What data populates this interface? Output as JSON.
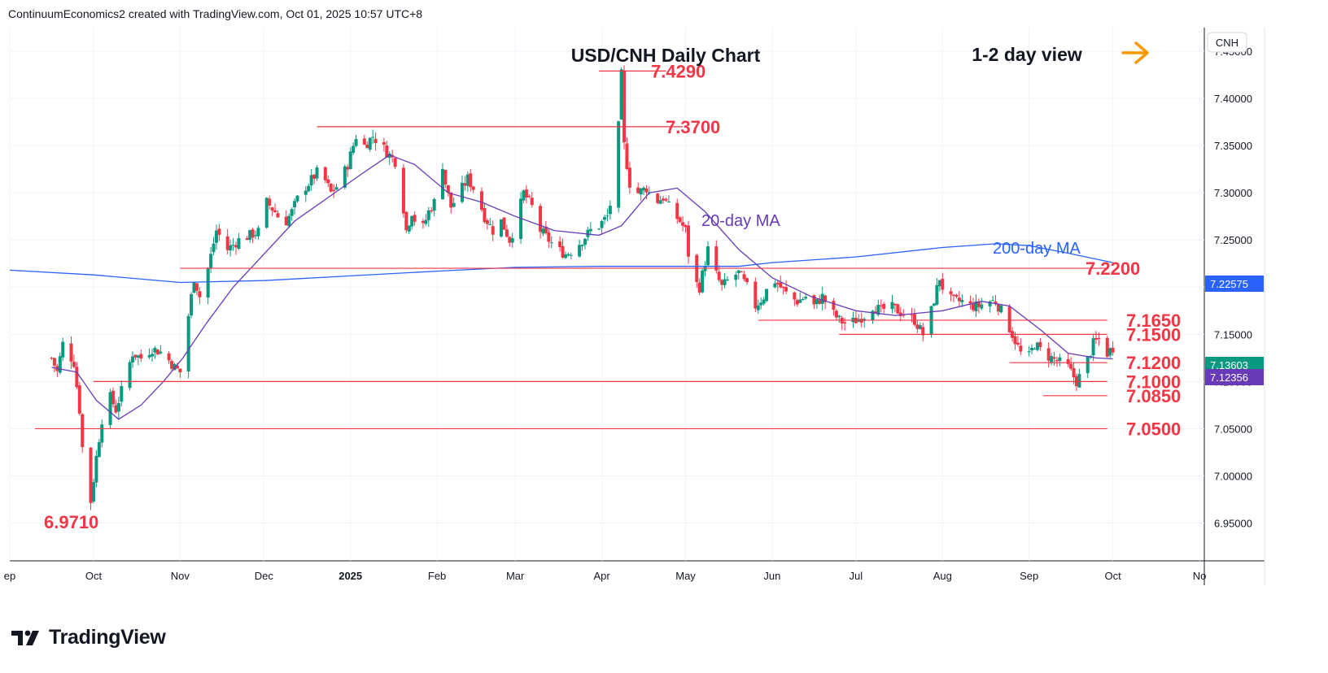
{
  "header": "ContinuumEconomics2 created with TradingView.com, Oct 01, 2025 10:57 UTC+8",
  "brand": "TradingView",
  "symbol_tag": "CNH",
  "colors": {
    "up": "#089981",
    "down": "#f23645",
    "level": "#f23645",
    "ma20": "#673ab7",
    "ma200": "#2962ff",
    "arrow": "#ff9800"
  },
  "chart_data": {
    "type": "candlestick",
    "title": "USD/CNH Daily Chart",
    "view_label": "1-2 day view",
    "view_icon": "arrow-right-icon",
    "ylim": [
      6.91,
      7.475
    ],
    "y_ticks": [
      "7.45000",
      "7.40000",
      "7.35000",
      "7.30000",
      "7.25000",
      "7.20000",
      "7.15000",
      "7.10000",
      "7.05000",
      "7.00000",
      "6.95000"
    ],
    "x_labels": [
      "ep",
      "Oct",
      "Nov",
      "Dec",
      "2025",
      "Feb",
      "Mar",
      "Apr",
      "May",
      "Jun",
      "Jul",
      "Aug",
      "Sep",
      "Oct",
      "No"
    ],
    "price_tags": [
      {
        "label": "7.22575",
        "value": 7.22575,
        "color": "#2962ff"
      },
      {
        "label": "7.13603",
        "value": 7.13603,
        "color": "#089981"
      },
      {
        "label": "7.12356",
        "value": 7.12356,
        "color": "#673ab7"
      }
    ],
    "levels": [
      {
        "label": "7.4290",
        "value": 7.429
      },
      {
        "label": "7.3700",
        "value": 7.37
      },
      {
        "label": "7.2200",
        "value": 7.22
      },
      {
        "label": "7.1650",
        "value": 7.165
      },
      {
        "label": "7.1500",
        "value": 7.15
      },
      {
        "label": "7.1200",
        "value": 7.12
      },
      {
        "label": "7.1000",
        "value": 7.1
      },
      {
        "label": "7.0850",
        "value": 7.085
      },
      {
        "label": "7.0500",
        "value": 7.05
      }
    ],
    "low_annotation": {
      "label": "6.9710",
      "value": 6.971
    },
    "ma_labels": [
      {
        "label": "20-day MA",
        "color": "#673ab7"
      },
      {
        "label": "200-day MA",
        "color": "#2962ff"
      }
    ],
    "close_path": [
      [
        "2024-09-16",
        7.125
      ],
      [
        "2024-09-18",
        7.11
      ],
      [
        "2024-09-20",
        7.14
      ],
      [
        "2024-09-24",
        7.12
      ],
      [
        "2024-09-26",
        7.07
      ],
      [
        "2024-09-27",
        7.03
      ],
      [
        "2024-09-29",
        6.99
      ],
      [
        "2024-09-30",
        6.973
      ],
      [
        "2024-10-02",
        7.02
      ],
      [
        "2024-10-04",
        7.06
      ],
      [
        "2024-10-06",
        7.09
      ],
      [
        "2024-10-09",
        7.07
      ],
      [
        "2024-10-12",
        7.1
      ],
      [
        "2024-10-15",
        7.13
      ],
      [
        "2024-10-18",
        7.125
      ],
      [
        "2024-10-22",
        7.135
      ],
      [
        "2024-10-26",
        7.13
      ],
      [
        "2024-10-30",
        7.115
      ],
      [
        "2024-11-01",
        7.11
      ],
      [
        "2024-11-04",
        7.17
      ],
      [
        "2024-11-06",
        7.21
      ],
      [
        "2024-11-08",
        7.19
      ],
      [
        "2024-11-11",
        7.22
      ],
      [
        "2024-11-14",
        7.26
      ],
      [
        "2024-11-18",
        7.24
      ],
      [
        "2024-11-22",
        7.25
      ],
      [
        "2024-11-26",
        7.255
      ],
      [
        "2024-11-30",
        7.26
      ],
      [
        "2024-12-02",
        7.29
      ],
      [
        "2024-12-05",
        7.28
      ],
      [
        "2024-12-08",
        7.265
      ],
      [
        "2024-12-11",
        7.28
      ],
      [
        "2024-12-14",
        7.3
      ],
      [
        "2024-12-17",
        7.31
      ],
      [
        "2024-12-21",
        7.325
      ],
      [
        "2024-12-25",
        7.3
      ],
      [
        "2024-12-28",
        7.31
      ],
      [
        "2024-12-31",
        7.33
      ],
      [
        "2025-01-03",
        7.36
      ],
      [
        "2025-01-06",
        7.35
      ],
      [
        "2025-01-09",
        7.36
      ],
      [
        "2025-01-12",
        7.35
      ],
      [
        "2025-01-15",
        7.34
      ],
      [
        "2025-01-18",
        7.33
      ],
      [
        "2025-01-21",
        7.26
      ],
      [
        "2025-01-23",
        7.28
      ],
      [
        "2025-01-26",
        7.255
      ],
      [
        "2025-01-29",
        7.28
      ],
      [
        "2025-01-31",
        7.29
      ],
      [
        "2025-02-02",
        7.35
      ],
      [
        "2025-02-04",
        7.31
      ],
      [
        "2025-02-06",
        7.285
      ],
      [
        "2025-02-09",
        7.3
      ],
      [
        "2025-02-12",
        7.315
      ],
      [
        "2025-02-15",
        7.3
      ],
      [
        "2025-02-18",
        7.275
      ],
      [
        "2025-02-21",
        7.26
      ],
      [
        "2025-02-24",
        7.27
      ],
      [
        "2025-02-27",
        7.25
      ],
      [
        "2025-03-01",
        7.265
      ],
      [
        "2025-03-04",
        7.3
      ],
      [
        "2025-03-07",
        7.285
      ],
      [
        "2025-03-10",
        7.26
      ],
      [
        "2025-03-13",
        7.25
      ],
      [
        "2025-03-16",
        7.24
      ],
      [
        "2025-03-19",
        7.235
      ],
      [
        "2025-03-22",
        7.24
      ],
      [
        "2025-03-25",
        7.25
      ],
      [
        "2025-03-28",
        7.26
      ],
      [
        "2025-03-31",
        7.265
      ],
      [
        "2025-04-03",
        7.275
      ],
      [
        "2025-04-05",
        7.3
      ],
      [
        "2025-04-07",
        7.37
      ],
      [
        "2025-04-08",
        7.425
      ],
      [
        "2025-04-09",
        7.35
      ],
      [
        "2025-04-11",
        7.31
      ],
      [
        "2025-04-14",
        7.3
      ],
      [
        "2025-04-17",
        7.305
      ],
      [
        "2025-04-20",
        7.29
      ],
      [
        "2025-04-23",
        7.295
      ],
      [
        "2025-04-26",
        7.28
      ],
      [
        "2025-04-29",
        7.27
      ],
      [
        "2025-05-01",
        7.26
      ],
      [
        "2025-05-03",
        7.21
      ],
      [
        "2025-05-06",
        7.2
      ],
      [
        "2025-05-09",
        7.24
      ],
      [
        "2025-05-11",
        7.22
      ],
      [
        "2025-05-14",
        7.2
      ],
      [
        "2025-05-17",
        7.21
      ],
      [
        "2025-05-20",
        7.215
      ],
      [
        "2025-05-23",
        7.2
      ],
      [
        "2025-05-26",
        7.18
      ],
      [
        "2025-05-29",
        7.19
      ],
      [
        "2025-06-01",
        7.21
      ],
      [
        "2025-06-04",
        7.2
      ],
      [
        "2025-06-07",
        7.19
      ],
      [
        "2025-06-10",
        7.185
      ],
      [
        "2025-06-13",
        7.19
      ],
      [
        "2025-06-16",
        7.18
      ],
      [
        "2025-06-19",
        7.19
      ],
      [
        "2025-06-22",
        7.175
      ],
      [
        "2025-06-25",
        7.165
      ],
      [
        "2025-06-28",
        7.16
      ],
      [
        "2025-07-01",
        7.165
      ],
      [
        "2025-07-04",
        7.17
      ],
      [
        "2025-07-07",
        7.18
      ],
      [
        "2025-07-10",
        7.175
      ],
      [
        "2025-07-13",
        7.18
      ],
      [
        "2025-07-16",
        7.175
      ],
      [
        "2025-07-19",
        7.17
      ],
      [
        "2025-07-22",
        7.165
      ],
      [
        "2025-07-25",
        7.15
      ],
      [
        "2025-07-28",
        7.175
      ],
      [
        "2025-07-31",
        7.21
      ],
      [
        "2025-08-02",
        7.19
      ],
      [
        "2025-08-05",
        7.185
      ],
      [
        "2025-08-08",
        7.185
      ],
      [
        "2025-08-11",
        7.18
      ],
      [
        "2025-08-14",
        7.18
      ],
      [
        "2025-08-17",
        7.185
      ],
      [
        "2025-08-20",
        7.185
      ],
      [
        "2025-08-23",
        7.17
      ],
      [
        "2025-08-26",
        7.15
      ],
      [
        "2025-08-29",
        7.13
      ],
      [
        "2025-08-31",
        7.12
      ],
      [
        "2025-09-03",
        7.14
      ],
      [
        "2025-09-06",
        7.13
      ],
      [
        "2025-09-09",
        7.125
      ],
      [
        "2025-09-12",
        7.12
      ],
      [
        "2025-09-15",
        7.115
      ],
      [
        "2025-09-18",
        7.1
      ],
      [
        "2025-09-21",
        7.115
      ],
      [
        "2025-09-24",
        7.14
      ],
      [
        "2025-09-26",
        7.145
      ],
      [
        "2025-09-29",
        7.13
      ],
      [
        "2025-10-01",
        7.136
      ]
    ],
    "ma20_path": [
      [
        "2024-09-16",
        7.115
      ],
      [
        "2024-09-25",
        7.11
      ],
      [
        "2024-10-02",
        7.08
      ],
      [
        "2024-10-10",
        7.06
      ],
      [
        "2024-10-18",
        7.075
      ],
      [
        "2024-10-26",
        7.1
      ],
      [
        "2024-11-02",
        7.125
      ],
      [
        "2024-11-10",
        7.16
      ],
      [
        "2024-11-20",
        7.2
      ],
      [
        "2024-12-01",
        7.235
      ],
      [
        "2024-12-12",
        7.27
      ],
      [
        "2024-12-24",
        7.295
      ],
      [
        "2025-01-05",
        7.32
      ],
      [
        "2025-01-15",
        7.34
      ],
      [
        "2025-01-24",
        7.33
      ],
      [
        "2025-02-05",
        7.3
      ],
      [
        "2025-02-17",
        7.29
      ],
      [
        "2025-03-01",
        7.275
      ],
      [
        "2025-03-15",
        7.26
      ],
      [
        "2025-03-31",
        7.255
      ],
      [
        "2025-04-08",
        7.265
      ],
      [
        "2025-04-18",
        7.3
      ],
      [
        "2025-04-28",
        7.305
      ],
      [
        "2025-05-08",
        7.28
      ],
      [
        "2025-05-20",
        7.24
      ],
      [
        "2025-06-01",
        7.21
      ],
      [
        "2025-06-15",
        7.19
      ],
      [
        "2025-07-01",
        7.175
      ],
      [
        "2025-07-15",
        7.17
      ],
      [
        "2025-08-01",
        7.175
      ],
      [
        "2025-08-15",
        7.185
      ],
      [
        "2025-08-25",
        7.18
      ],
      [
        "2025-09-05",
        7.155
      ],
      [
        "2025-09-15",
        7.13
      ],
      [
        "2025-09-25",
        7.125
      ],
      [
        "2025-10-01",
        7.124
      ]
    ],
    "ma200_path": [
      [
        "2024-09-01",
        7.218
      ],
      [
        "2024-10-01",
        7.213
      ],
      [
        "2024-11-01",
        7.205
      ],
      [
        "2024-12-01",
        7.207
      ],
      [
        "2025-01-01",
        7.212
      ],
      [
        "2025-02-01",
        7.217
      ],
      [
        "2025-03-01",
        7.221
      ],
      [
        "2025-04-01",
        7.222
      ],
      [
        "2025-05-01",
        7.222
      ],
      [
        "2025-05-20",
        7.222
      ],
      [
        "2025-06-01",
        7.226
      ],
      [
        "2025-07-01",
        7.232
      ],
      [
        "2025-08-01",
        7.242
      ],
      [
        "2025-08-20",
        7.246
      ],
      [
        "2025-09-01",
        7.244
      ],
      [
        "2025-09-15",
        7.236
      ],
      [
        "2025-10-01",
        7.226
      ]
    ]
  }
}
